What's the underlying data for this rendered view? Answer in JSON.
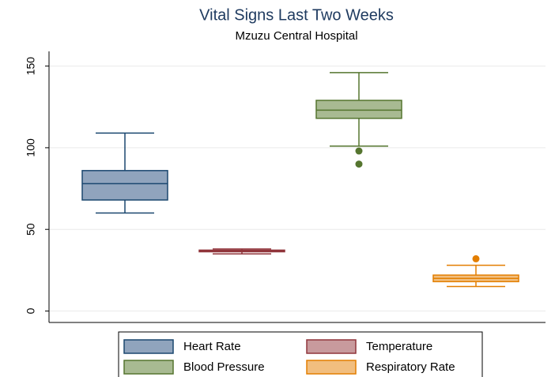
{
  "chart_data": {
    "type": "box",
    "title": "Vital Signs Last Two Weeks",
    "subtitle": "Mzuzu Central Hospital",
    "ylim": [
      -7,
      159
    ],
    "yticks": [
      0,
      50,
      100,
      150
    ],
    "grid": true,
    "series": [
      {
        "name": "Heart Rate",
        "color": "#1a476f",
        "fill": "#90a4bd",
        "min": 60,
        "q1": 68,
        "median": 78,
        "q3": 86,
        "max": 109
      },
      {
        "name": "Temperature",
        "color": "#90353b",
        "fill": "#c89a9d",
        "min": 35,
        "q1": 36.3,
        "median": 36.8,
        "q3": 37.3,
        "max": 38
      },
      {
        "name": "Blood Pressure",
        "color": "#55752f",
        "fill": "#a8ba92",
        "min": 101,
        "q1": 118,
        "median": 123,
        "q3": 129,
        "max": 146,
        "outliers": [
          98,
          90
        ]
      },
      {
        "name": "Respiratory Rate",
        "color": "#e37e00",
        "fill": "#f1be7f",
        "min": 15,
        "q1": 18,
        "median": 20,
        "q3": 22,
        "max": 28,
        "outliers": [
          32
        ]
      }
    ]
  }
}
